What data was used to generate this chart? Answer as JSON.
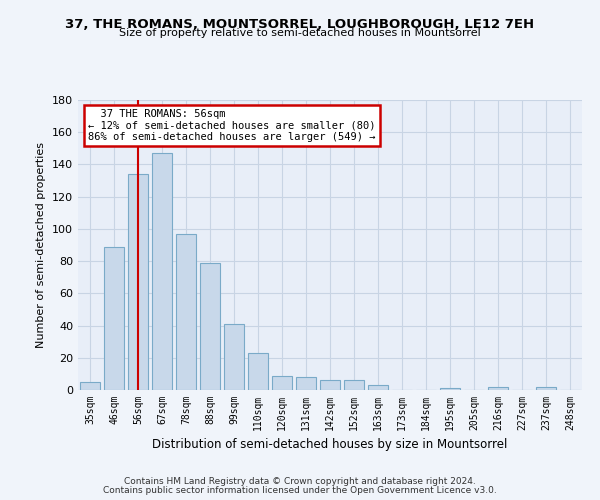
{
  "title": "37, THE ROMANS, MOUNTSORREL, LOUGHBOROUGH, LE12 7EH",
  "subtitle": "Size of property relative to semi-detached houses in Mountsorrel",
  "xlabel": "Distribution of semi-detached houses by size in Mountsorrel",
  "ylabel": "Number of semi-detached properties",
  "bar_labels": [
    "35sqm",
    "46sqm",
    "56sqm",
    "67sqm",
    "78sqm",
    "88sqm",
    "99sqm",
    "110sqm",
    "120sqm",
    "131sqm",
    "142sqm",
    "152sqm",
    "163sqm",
    "173sqm",
    "184sqm",
    "195sqm",
    "205sqm",
    "216sqm",
    "227sqm",
    "237sqm",
    "248sqm"
  ],
  "bar_values": [
    5,
    89,
    134,
    147,
    97,
    79,
    41,
    23,
    9,
    8,
    6,
    6,
    3,
    0,
    0,
    1,
    0,
    2,
    0,
    2,
    0
  ],
  "bar_color": "#c8d8ea",
  "bar_edgecolor": "#7aaac8",
  "property_index": 2,
  "property_label": "37 THE ROMANS: 56sqm",
  "smaller_pct": "12%",
  "smaller_n": 80,
  "larger_pct": "86%",
  "larger_n": 549,
  "redline_color": "#cc0000",
  "annotation_box_edgecolor": "#cc0000",
  "ylim": [
    0,
    180
  ],
  "yticks": [
    0,
    20,
    40,
    60,
    80,
    100,
    120,
    140,
    160,
    180
  ],
  "grid_color": "#c8d4e4",
  "bg_color": "#e8eef8",
  "fig_color": "#f0f4fa",
  "footer1": "Contains HM Land Registry data © Crown copyright and database right 2024.",
  "footer2": "Contains public sector information licensed under the Open Government Licence v3.0."
}
